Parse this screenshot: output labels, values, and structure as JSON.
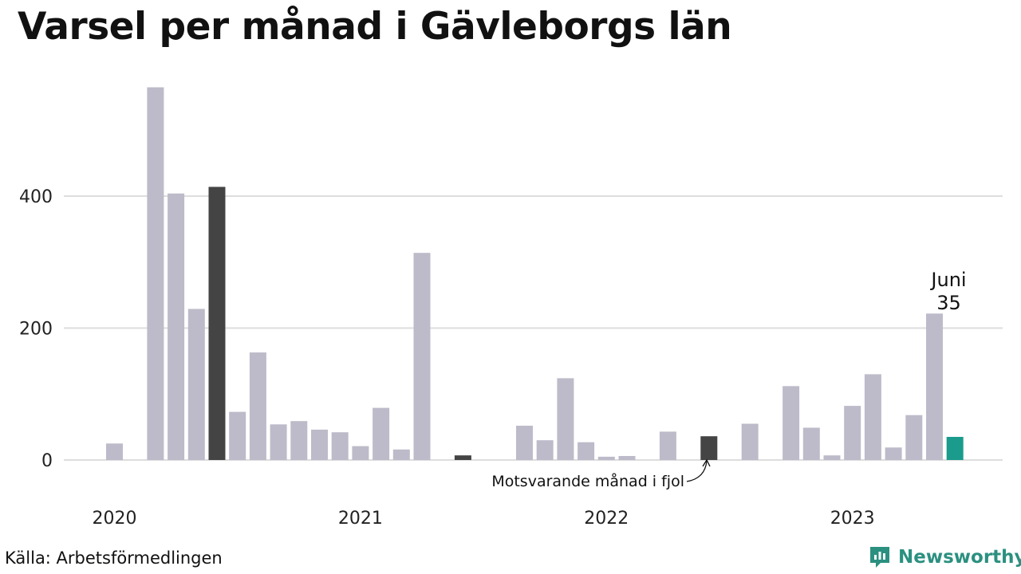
{
  "title": "Varsel per månad i Gävleborgs län",
  "source": "Källa: Arbetsförmedlingen",
  "brand": "Newsworthy",
  "colors": {
    "bar": "#bdbbc9",
    "highlight_prev": "#444444",
    "highlight_current": "#1a9b8c",
    "grid": "#dddddd",
    "brand": "#2b9080"
  },
  "chart_data": {
    "type": "bar",
    "x_tick_labels": [
      "2020",
      "2021",
      "2022",
      "2023"
    ],
    "y_ticks": [
      0,
      200,
      400
    ],
    "ylim": [
      0,
      570
    ],
    "months": [
      "2020-01",
      "2020-02",
      "2020-03",
      "2020-04",
      "2020-05",
      "2020-06",
      "2020-07",
      "2020-08",
      "2020-09",
      "2020-10",
      "2020-11",
      "2020-12",
      "2021-01",
      "2021-02",
      "2021-03",
      "2021-04",
      "2021-05",
      "2021-06",
      "2021-07",
      "2021-08",
      "2021-09",
      "2021-10",
      "2021-11",
      "2021-12",
      "2022-01",
      "2022-02",
      "2022-03",
      "2022-04",
      "2022-05",
      "2022-06",
      "2022-07",
      "2022-08",
      "2022-09",
      "2022-10",
      "2022-11",
      "2022-12",
      "2023-01",
      "2023-02",
      "2023-03",
      "2023-04",
      "2023-05",
      "2023-06"
    ],
    "values": [
      25,
      0,
      565,
      404,
      229,
      414,
      73,
      163,
      54,
      59,
      46,
      42,
      21,
      79,
      16,
      314,
      0,
      7,
      0,
      0,
      52,
      30,
      124,
      27,
      5,
      6,
      0,
      43,
      0,
      36,
      0,
      55,
      0,
      112,
      49,
      7,
      82,
      130,
      19,
      68,
      222,
      35
    ],
    "highlight_previous_index": 5,
    "highlight_previous_2_index": 17,
    "highlight_previous_3_index": 29,
    "highlight_current_index": 41,
    "current_label": "Juni",
    "current_value_label": "35",
    "annotation": "Motsvarande månad i fjol"
  }
}
